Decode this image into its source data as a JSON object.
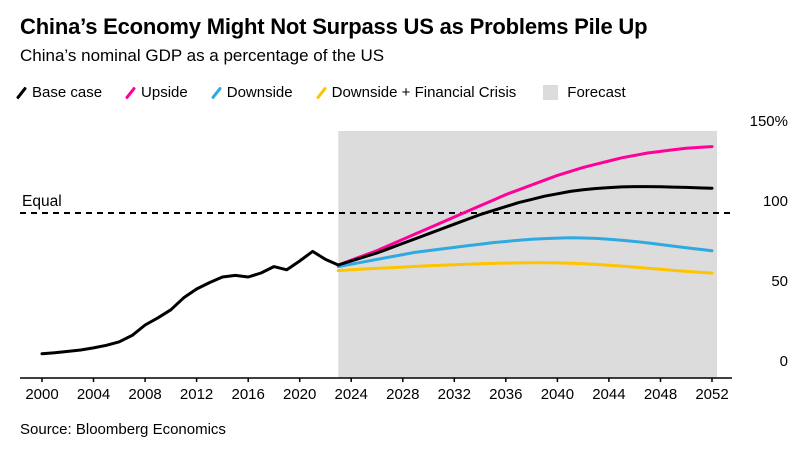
{
  "header": {
    "title": "China’s Economy Might Not Surpass US as Problems Pile Up",
    "subtitle": "China’s nominal GDP as a percentage of the US"
  },
  "legend": [
    {
      "label": "Base case",
      "color": "#000000",
      "swatch": "slash"
    },
    {
      "label": "Upside",
      "color": "#ff0099",
      "swatch": "slash"
    },
    {
      "label": "Downside",
      "color": "#2fa9e1",
      "swatch": "slash"
    },
    {
      "label": "Downside + Financial Crisis",
      "color": "#ffc400",
      "swatch": "slash"
    },
    {
      "label": "Forecast",
      "color": "#dcdcdc",
      "swatch": "square"
    }
  ],
  "source": "Source: Bloomberg Economics",
  "chart_data": {
    "type": "line",
    "title": "China’s Economy Might Not Surpass US as Problems Pile Up",
    "subtitle": "China’s nominal GDP as a percentage of the US",
    "xlabel": "",
    "ylabel": "",
    "xlim": [
      2000,
      2052
    ],
    "ylim": [
      0,
      150
    ],
    "grid": false,
    "legend_position": "top",
    "xticks": [
      2000,
      2004,
      2008,
      2012,
      2016,
      2020,
      2024,
      2028,
      2032,
      2036,
      2040,
      2044,
      2048,
      2052
    ],
    "yticks": [
      0,
      50,
      100,
      150
    ],
    "ytick_labels": [
      "0",
      "50",
      "100",
      "150%"
    ],
    "forecast_region": {
      "label": "Forecast",
      "start": 2023,
      "end": 2052,
      "color": "#dcdcdc"
    },
    "reference_line": {
      "label": "Equal",
      "value": 100,
      "style": "dashed",
      "color": "#000000"
    },
    "series": [
      {
        "name": "Base case",
        "color": "#000000",
        "x_start": 2000,
        "x_step": 1,
        "values": [
          12,
          12.7,
          13.5,
          14.4,
          15.7,
          17.3,
          19.5,
          23.5,
          30,
          34.5,
          39.5,
          47,
          52.5,
          56.5,
          60,
          61,
          60,
          62.5,
          66.5,
          64.5,
          70,
          76,
          71,
          67.5,
          70,
          72.5,
          75,
          78,
          81,
          84,
          87,
          90,
          93,
          96,
          99,
          101.5,
          104,
          106.5,
          108.5,
          110.5,
          112,
          113.5,
          114.5,
          115.3,
          115.9,
          116.3,
          116.5,
          116.5,
          116.4,
          116.2,
          116,
          115.7,
          115.5
        ]
      },
      {
        "name": "Upside",
        "color": "#ff0099",
        "x_start": 2023,
        "x_step": 1,
        "values": [
          67.5,
          70.5,
          73.5,
          76.5,
          80,
          83.5,
          87,
          90.5,
          94,
          97.5,
          101,
          104.5,
          108,
          111.5,
          114.5,
          117.5,
          120.5,
          123.5,
          126,
          128.5,
          130.5,
          132.5,
          134.5,
          136,
          137.5,
          138.5,
          139.5,
          140.5,
          141,
          141.5
        ]
      },
      {
        "name": "Downside",
        "color": "#2fa9e1",
        "x_start": 2023,
        "x_step": 1,
        "values": [
          66.5,
          68,
          69.5,
          71,
          72.5,
          74,
          75.5,
          76.5,
          77.5,
          78.5,
          79.5,
          80.5,
          81.5,
          82.2,
          83,
          83.6,
          84,
          84.3,
          84.5,
          84.4,
          84.1,
          83.6,
          83,
          82.2,
          81.3,
          80.3,
          79.3,
          78.3,
          77.3,
          76.4
        ]
      },
      {
        "name": "Downside + Financial Crisis",
        "color": "#ffc400",
        "x_start": 2023,
        "x_step": 1,
        "values": [
          64,
          64.5,
          65,
          65.4,
          65.8,
          66.2,
          66.6,
          67,
          67.4,
          67.7,
          68,
          68.3,
          68.5,
          68.7,
          68.8,
          68.9,
          68.9,
          68.8,
          68.6,
          68.3,
          67.9,
          67.4,
          66.8,
          66.2,
          65.5,
          64.8,
          64.1,
          63.5,
          63,
          62.5
        ]
      }
    ]
  }
}
